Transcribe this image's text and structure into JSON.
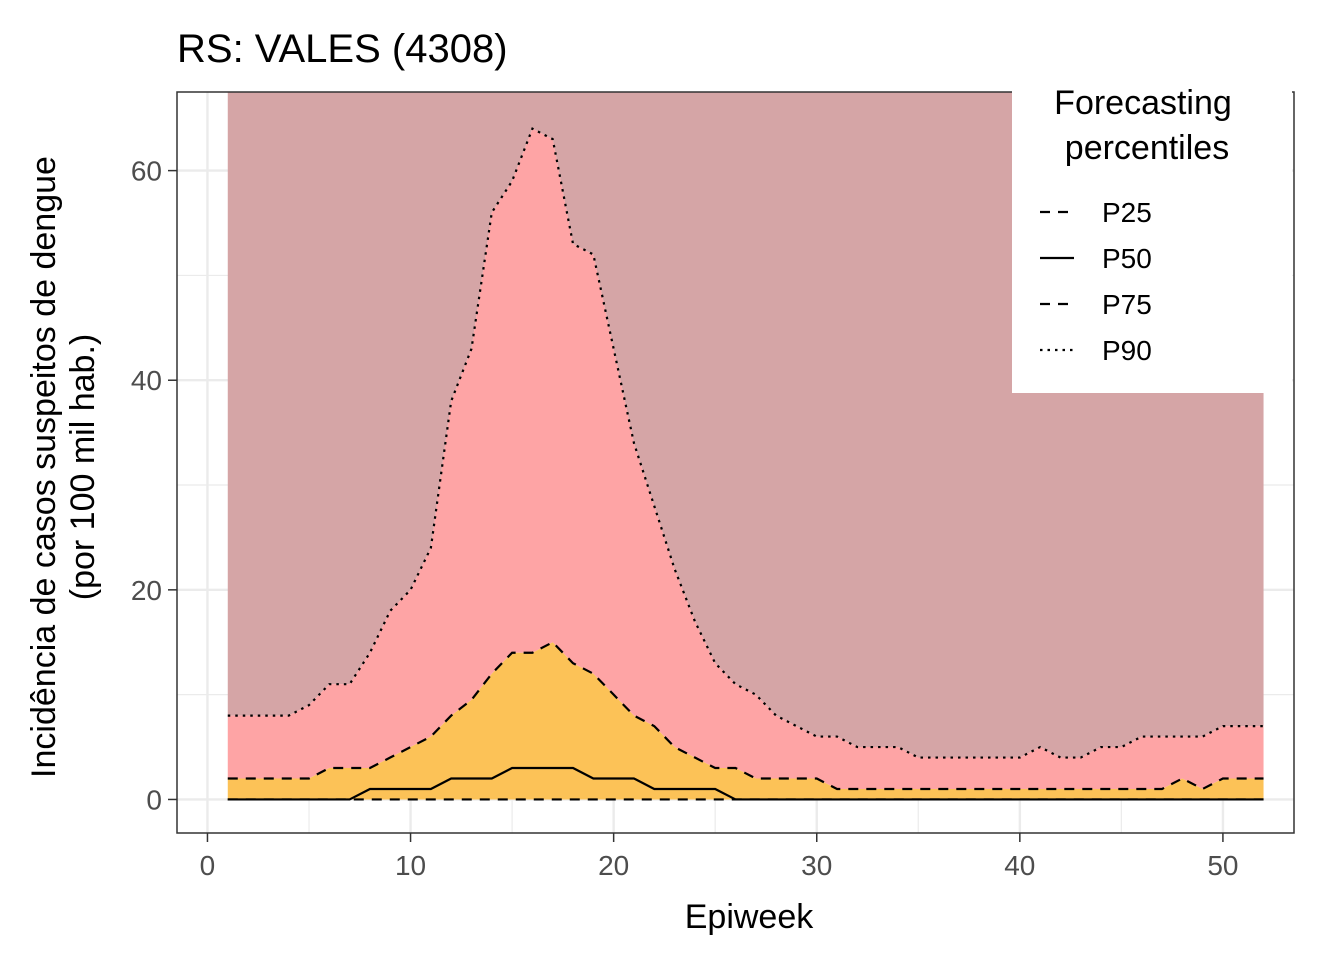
{
  "chart_data": {
    "type": "area",
    "title": "RS: VALES (4308)",
    "xlabel": "Epiweek",
    "ylabel": [
      "Incidência de casos suspeitos de dengue",
      "(por 100 mil hab.)"
    ],
    "xlim": [
      -1.5,
      53.5
    ],
    "ylim": [
      -3.2,
      67.5
    ],
    "xticks": [
      0,
      10,
      20,
      30,
      40,
      50
    ],
    "yticks": [
      0,
      20,
      40,
      60
    ],
    "grid": true,
    "legend": {
      "title": [
        "Forecasting",
        "percentiles"
      ],
      "position": "top-right",
      "entries": [
        {
          "label": "P25",
          "linetype": "dashed"
        },
        {
          "label": "P50",
          "linetype": "solid"
        },
        {
          "label": "P75",
          "linetype": "dashed"
        },
        {
          "label": "P90",
          "linetype": "dotted"
        }
      ]
    },
    "colors": {
      "band_top": "#d5a5a6",
      "band_p75_p90": "#fea4a5",
      "band_p25_p75": "#fcc257",
      "line": "#000000"
    },
    "x": [
      1,
      2,
      3,
      4,
      5,
      6,
      7,
      8,
      9,
      10,
      11,
      12,
      13,
      14,
      15,
      16,
      17,
      18,
      19,
      20,
      21,
      22,
      23,
      24,
      25,
      26,
      27,
      28,
      29,
      30,
      31,
      32,
      33,
      34,
      35,
      36,
      37,
      38,
      39,
      40,
      41,
      42,
      43,
      44,
      45,
      46,
      47,
      48,
      49,
      50,
      51,
      52
    ],
    "series": [
      {
        "name": "P25",
        "values": [
          0,
          0,
          0,
          0,
          0,
          0,
          0,
          0,
          0,
          0,
          0,
          0,
          0,
          0,
          0,
          0,
          0,
          0,
          0,
          0,
          0,
          0,
          0,
          0,
          0,
          0,
          0,
          0,
          0,
          0,
          0,
          0,
          0,
          0,
          0,
          0,
          0,
          0,
          0,
          0,
          0,
          0,
          0,
          0,
          0,
          0,
          0,
          0,
          0,
          0,
          0,
          0
        ]
      },
      {
        "name": "P50",
        "values": [
          0,
          0,
          0,
          0,
          0,
          0,
          0,
          1,
          1,
          1,
          1,
          2,
          2,
          2,
          3,
          3,
          3,
          3,
          2,
          2,
          2,
          1,
          1,
          1,
          1,
          0,
          0,
          0,
          0,
          0,
          0,
          0,
          0,
          0,
          0,
          0,
          0,
          0,
          0,
          0,
          0,
          0,
          0,
          0,
          0,
          0,
          0,
          0,
          0,
          0,
          0,
          0
        ]
      },
      {
        "name": "P75",
        "values": [
          2,
          2,
          2,
          2,
          2,
          3,
          3,
          3,
          4,
          5,
          6,
          8,
          9.5,
          12,
          14,
          14,
          15,
          13,
          12,
          10,
          8,
          7,
          5,
          4,
          3,
          3,
          2,
          2,
          2,
          2,
          1,
          1,
          1,
          1,
          1,
          1,
          1,
          1,
          1,
          1,
          1,
          1,
          1,
          1,
          1,
          1,
          1,
          2,
          1,
          2,
          2,
          2
        ]
      },
      {
        "name": "P90",
        "values": [
          8,
          8,
          8,
          8,
          9,
          11,
          11,
          14,
          18,
          20,
          24,
          38,
          43,
          56,
          59,
          64,
          63,
          53,
          52,
          43,
          34,
          28,
          22,
          17,
          13,
          11,
          10,
          8,
          7,
          6,
          6,
          5,
          5,
          5,
          4,
          4,
          4,
          4,
          4,
          4,
          5,
          4,
          4,
          5,
          5,
          6,
          6,
          6,
          6,
          7,
          7,
          7
        ]
      }
    ],
    "upper_band_max": 67.5
  }
}
